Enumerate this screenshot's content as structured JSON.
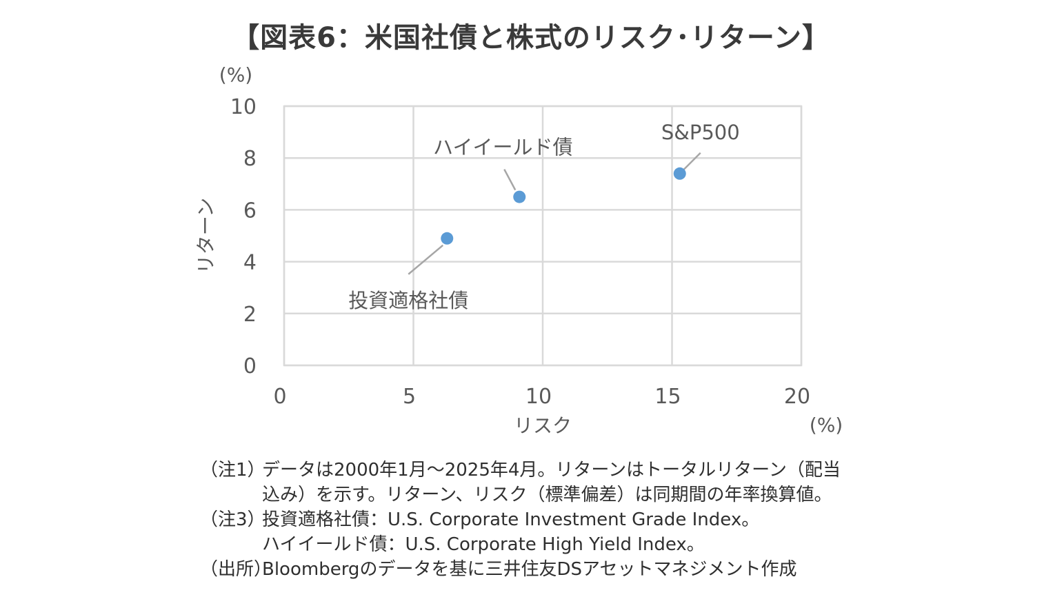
{
  "title": "【図表6：米国社債と株式のリスク･リターン】",
  "chart_data": {
    "type": "scatter",
    "xlabel": "リスク",
    "ylabel": "リターン",
    "x_unit": "(%)",
    "y_unit": "(%)",
    "xlim": [
      0,
      20
    ],
    "ylim": [
      0,
      10
    ],
    "x_ticks": [
      "0",
      "5",
      "10",
      "15",
      "20"
    ],
    "y_ticks": [
      "0",
      "2",
      "4",
      "6",
      "8",
      "10"
    ],
    "grid": true,
    "point_color": "#5b9bd5",
    "points": [
      {
        "label": "投資適格社債",
        "x": 6.3,
        "y": 4.9
      },
      {
        "label": "ハイイールド債",
        "x": 9.1,
        "y": 6.5
      },
      {
        "label": "S&P500",
        "x": 15.3,
        "y": 7.4
      }
    ]
  },
  "notes": {
    "n1_tag": "（注1）",
    "n1_line1": "データは2000年1月～2025年4月。リターンはトータルリターン（配当",
    "n1_line2": "込み）を示す。リターン、リスク（標準偏差）は同期間の年率換算値。",
    "n3_tag": "（注3）",
    "n3_line1": "投資適格社債：U.S. Corporate Investment Grade Index。",
    "n3_line2": "ハイイールド債：U.S. Corporate High Yield Index。",
    "src_tag": "（出所）",
    "src_line": "Bloombergのデータを基に三井住友DSアセットマネジメント作成"
  }
}
